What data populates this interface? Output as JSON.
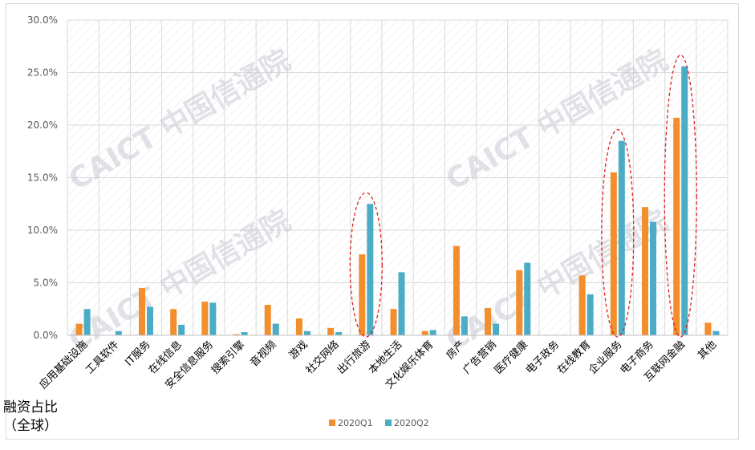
{
  "side_label": [
    "融资占比",
    "（全球）"
  ],
  "watermark": "CAICT 中国信通院",
  "colors": {
    "q1": "#f28e2b",
    "q2": "#4bacc6",
    "ellipse": "#e0201c",
    "grid": "#d9d9d9",
    "hatch": "#e4e4e4",
    "tick_text": "#595959",
    "watermark": "#c7cbd3"
  },
  "chart_data": {
    "type": "bar",
    "title": "",
    "xlabel": "",
    "ylabel": "",
    "ylim": [
      0,
      0.3
    ],
    "yticks": [
      "0.0%",
      "5.0%",
      "10.0%",
      "15.0%",
      "20.0%",
      "25.0%",
      "30.0%"
    ],
    "grid": true,
    "legend_position": "bottom",
    "categories": [
      "应用基础设施",
      "工具软件",
      "IT服务",
      "在线信息",
      "安全信息服务",
      "搜索引擎",
      "音视频",
      "游戏",
      "社交网络",
      "出行旅游",
      "本地生活",
      "文化娱乐体育",
      "房产",
      "广告营销",
      "医疗健康",
      "电子政务",
      "在线教育",
      "企业服务",
      "电子商务",
      "互联网金融",
      "其他"
    ],
    "series": [
      {
        "name": "2020Q1",
        "values": [
          0.011,
          0.0,
          0.045,
          0.025,
          0.032,
          0.001,
          0.029,
          0.016,
          0.007,
          0.077,
          0.025,
          0.004,
          0.085,
          0.026,
          0.062,
          0.0,
          0.057,
          0.155,
          0.122,
          0.207,
          0.012
        ]
      },
      {
        "name": "2020Q2",
        "values": [
          0.025,
          0.004,
          0.027,
          0.01,
          0.031,
          0.003,
          0.011,
          0.004,
          0.003,
          0.125,
          0.06,
          0.005,
          0.018,
          0.011,
          0.069,
          0.0,
          0.039,
          0.185,
          0.108,
          0.256,
          0.004
        ]
      }
    ],
    "highlighted_categories": [
      "出行旅游",
      "企业服务",
      "互联网金融"
    ]
  }
}
